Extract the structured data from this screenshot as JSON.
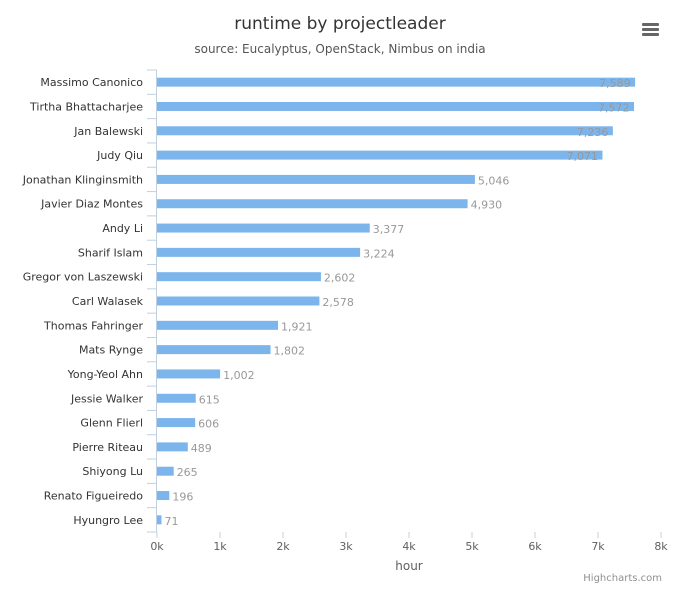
{
  "chart_data": {
    "type": "bar",
    "orientation": "horizontal",
    "title": "runtime by projectleader",
    "subtitle": "source: Eucalyptus, OpenStack, Nimbus on india",
    "xlabel": "hour",
    "ylabel": "",
    "categories": [
      "Massimo Canonico",
      "Tirtha Bhattacharjee",
      "Jan Balewski",
      "Judy Qiu",
      "Jonathan Klinginsmith",
      "Javier Diaz Montes",
      "Andy Li",
      "Sharif Islam",
      "Gregor von Laszewski",
      "Carl Walasek",
      "Thomas Fahringer",
      "Mats Rynge",
      "Yong-Yeol Ahn",
      "Jessie Walker",
      "Glenn Flierl",
      "Pierre Riteau",
      "Shiyong Lu",
      "Renato Figueiredo",
      "Hyungro Lee"
    ],
    "values": [
      7589,
      7572,
      7236,
      7071,
      5046,
      4930,
      3377,
      3224,
      2602,
      2578,
      1921,
      1802,
      1002,
      615,
      606,
      489,
      265,
      196,
      71
    ],
    "data_labels": [
      "7,589",
      "7,572",
      "7,236",
      "7,071",
      "5,046",
      "4,930",
      "3,377",
      "3,224",
      "2,602",
      "2,578",
      "1,921",
      "1,802",
      "1,002",
      "615",
      "606",
      "489",
      "265",
      "196",
      "71"
    ],
    "xlim": [
      0,
      8000
    ],
    "ticks": [
      0,
      1000,
      2000,
      3000,
      4000,
      5000,
      6000,
      7000,
      8000
    ],
    "tick_labels": [
      "0k",
      "1k",
      "2k",
      "3k",
      "4k",
      "5k",
      "6k",
      "7k",
      "8k"
    ],
    "bar_color": "#7cb5ec",
    "grid": false,
    "legend": "none"
  },
  "ui": {
    "credits": "Highcharts.com",
    "menu_icon": "hamburger-menu-icon"
  }
}
